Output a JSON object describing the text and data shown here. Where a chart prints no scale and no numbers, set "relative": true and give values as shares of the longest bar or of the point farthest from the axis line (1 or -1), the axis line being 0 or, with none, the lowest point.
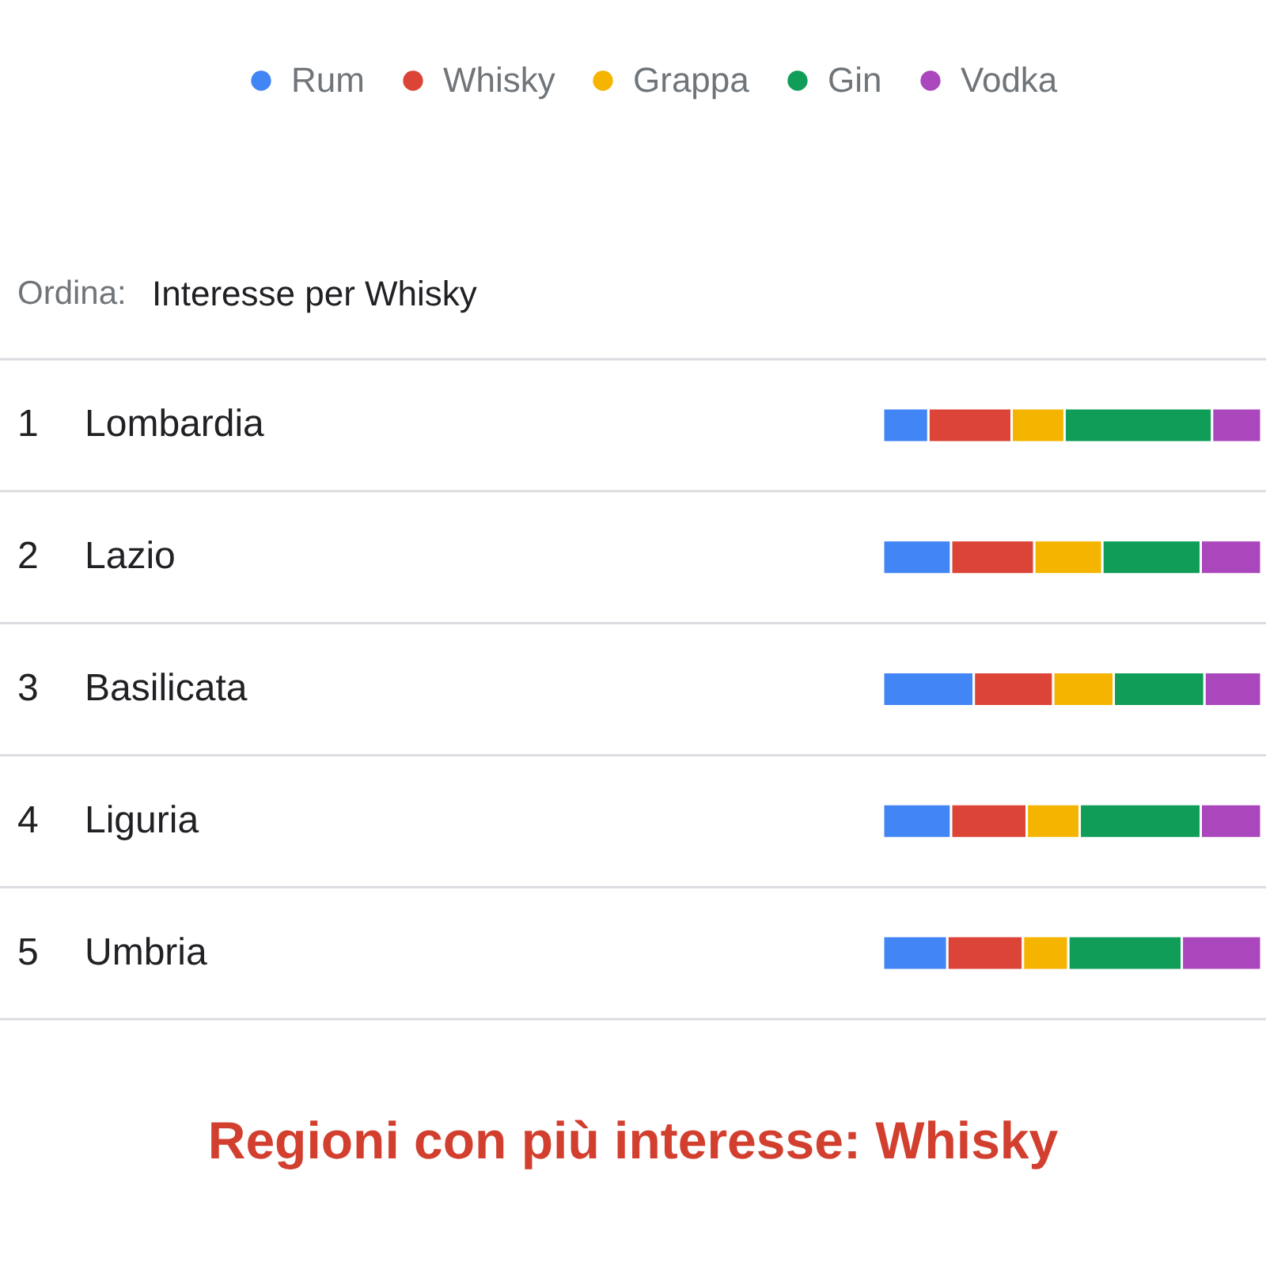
{
  "chart_data": {
    "type": "bar",
    "orientation": "horizontal",
    "stacked": true,
    "relative": true,
    "title": "Regioni con più interesse: Whisky",
    "categories": [
      "Lombardia",
      "Lazio",
      "Basilicata",
      "Liguria",
      "Umbria"
    ],
    "series": [
      {
        "name": "Rum",
        "color": "#4285f4",
        "values": [
          0.12,
          0.18,
          0.24,
          0.18,
          0.17
        ]
      },
      {
        "name": "Whisky",
        "color": "#db4437",
        "values": [
          0.22,
          0.22,
          0.21,
          0.2,
          0.2
        ]
      },
      {
        "name": "Grappa",
        "color": "#f4b400",
        "values": [
          0.14,
          0.18,
          0.16,
          0.14,
          0.12
        ]
      },
      {
        "name": "Gin",
        "color": "#0f9d58",
        "values": [
          0.39,
          0.26,
          0.24,
          0.32,
          0.3
        ]
      },
      {
        "name": "Vodka",
        "color": "#ab47bc",
        "values": [
          0.13,
          0.16,
          0.15,
          0.16,
          0.21
        ]
      }
    ],
    "legend": "top",
    "grid": "y",
    "annotations": [
      "Ordina:",
      "Interesse per Whisky",
      "1",
      "2",
      "3",
      "4",
      "5"
    ]
  }
}
